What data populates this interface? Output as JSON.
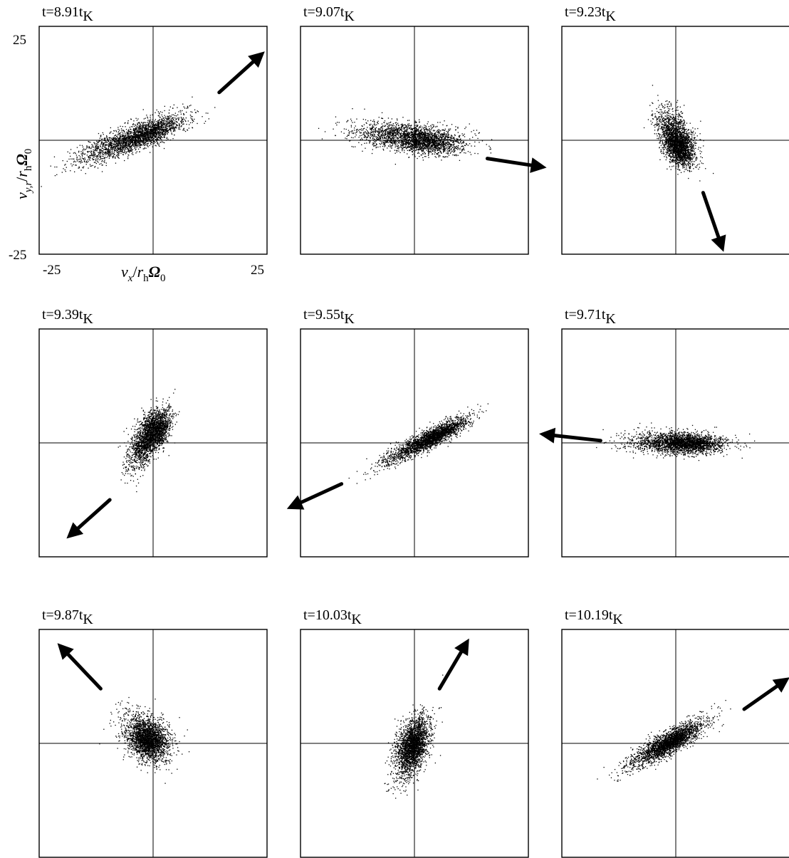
{
  "figure": {
    "xlabel": {
      "v": "v",
      "sub1": "x",
      "slash": "/",
      "r": "r",
      "sub2": "h",
      "omega": "Ω",
      "sub3": "0"
    },
    "ylabel": {
      "v": "v",
      "sub1": "y,r",
      "slash": "/",
      "r": "r",
      "sub2": "h",
      "omega": "Ω",
      "sub3": "0"
    },
    "tick_labels": {
      "xmin": "-25",
      "xmax": "25",
      "ymin": "-25",
      "ymax": "25"
    },
    "title_prefix": "t=",
    "title_unit": "t",
    "title_unit_sub": "K"
  },
  "chart_data": [
    {
      "type": "scatter",
      "title": "t=8.91tK",
      "time": "8.91",
      "xlim": [
        -25,
        25
      ],
      "ylim": [
        -25,
        25
      ],
      "cloud": {
        "center": [
          -6,
          0
        ],
        "spread_major": 14,
        "spread_minor": 2.6,
        "angle_deg": 22,
        "dense_center": [
          -1,
          1.5
        ]
      },
      "arrow": {
        "from": [
          14.5,
          10.5
        ],
        "to": [
          24.5,
          19.5
        ]
      }
    },
    {
      "type": "scatter",
      "title": "t=9.07tK",
      "time": "9.07",
      "xlim": [
        -25,
        25
      ],
      "ylim": [
        -25,
        25
      ],
      "cloud": {
        "center": [
          -2,
          1
        ],
        "spread_major": 13,
        "spread_minor": 2.8,
        "angle_deg": -5,
        "dense_center": [
          3,
          -0.5
        ]
      },
      "arrow": {
        "from": [
          16,
          -4
        ],
        "to": [
          29,
          -6
        ]
      }
    },
    {
      "type": "scatter",
      "title": "t=9.23tK",
      "time": "9.23",
      "xlim": [
        -25,
        25
      ],
      "ylim": [
        -25,
        25
      ],
      "cloud": {
        "center": [
          0,
          1
        ],
        "spread_major": 7,
        "spread_minor": 3,
        "angle_deg": -62,
        "dense_center": [
          0.5,
          -2
        ]
      },
      "arrow": {
        "from": [
          6,
          -11.5
        ],
        "to": [
          10.5,
          -24.5
        ]
      }
    },
    {
      "type": "scatter",
      "title": "t=9.39tK",
      "time": "9.39",
      "xlim": [
        -25,
        25
      ],
      "ylim": [
        -25,
        25
      ],
      "cloud": {
        "center": [
          -1.5,
          1
        ],
        "spread_major": 8,
        "spread_minor": 2.8,
        "angle_deg": 65,
        "dense_center": [
          1,
          3
        ]
      },
      "arrow": {
        "from": [
          -9.5,
          -12.5
        ],
        "to": [
          -19,
          -21
        ]
      }
    },
    {
      "type": "scatter",
      "title": "t=9.55tK",
      "time": "9.55",
      "xlim": [
        -25,
        25
      ],
      "ylim": [
        -25,
        25
      ],
      "cloud": {
        "center": [
          2,
          0.5
        ],
        "spread_major": 12,
        "spread_minor": 1.7,
        "angle_deg": 28,
        "dense_center": [
          5,
          1.5
        ]
      },
      "arrow": {
        "from": [
          -16,
          -9
        ],
        "to": [
          -28,
          -14.5
        ]
      }
    },
    {
      "type": "scatter",
      "title": "t=9.71tK",
      "time": "9.71",
      "xlim": [
        -25,
        25
      ],
      "ylim": [
        -25,
        25
      ],
      "cloud": {
        "center": [
          0,
          0
        ],
        "spread_major": 12,
        "spread_minor": 2.2,
        "angle_deg": -2,
        "dense_center": [
          3,
          0
        ]
      },
      "arrow": {
        "from": [
          -16.5,
          0.5
        ],
        "to": [
          -30,
          2
        ]
      }
    },
    {
      "type": "scatter",
      "title": "t=9.87tK",
      "time": "9.87",
      "xlim": [
        -25,
        25
      ],
      "ylim": [
        -25,
        25
      ],
      "cloud": {
        "center": [
          -1.5,
          1.5
        ],
        "spread_major": 7,
        "spread_minor": 4,
        "angle_deg": -48,
        "dense_center": [
          -1,
          0.5
        ]
      },
      "arrow": {
        "from": [
          -11.5,
          12
        ],
        "to": [
          -21,
          22
        ]
      }
    },
    {
      "type": "scatter",
      "title": "t=10.03tK",
      "time": "10.03",
      "xlim": [
        -25,
        25
      ],
      "ylim": [
        -25,
        25
      ],
      "cloud": {
        "center": [
          -0.5,
          -1
        ],
        "spread_major": 8.5,
        "spread_minor": 3,
        "angle_deg": 70,
        "dense_center": [
          -0.5,
          0
        ]
      },
      "arrow": {
        "from": [
          5.5,
          12
        ],
        "to": [
          12,
          23
        ]
      }
    },
    {
      "type": "scatter",
      "title": "t=10.19tK",
      "time": "10.19",
      "xlim": [
        -25,
        25
      ],
      "ylim": [
        -25,
        25
      ],
      "cloud": {
        "center": [
          -2,
          0
        ],
        "spread_major": 11,
        "spread_minor": 2.2,
        "angle_deg": 30,
        "dense_center": [
          -1,
          0.5
        ]
      },
      "arrow": {
        "from": [
          15,
          7.5
        ],
        "to": [
          25,
          14.5
        ]
      }
    }
  ]
}
